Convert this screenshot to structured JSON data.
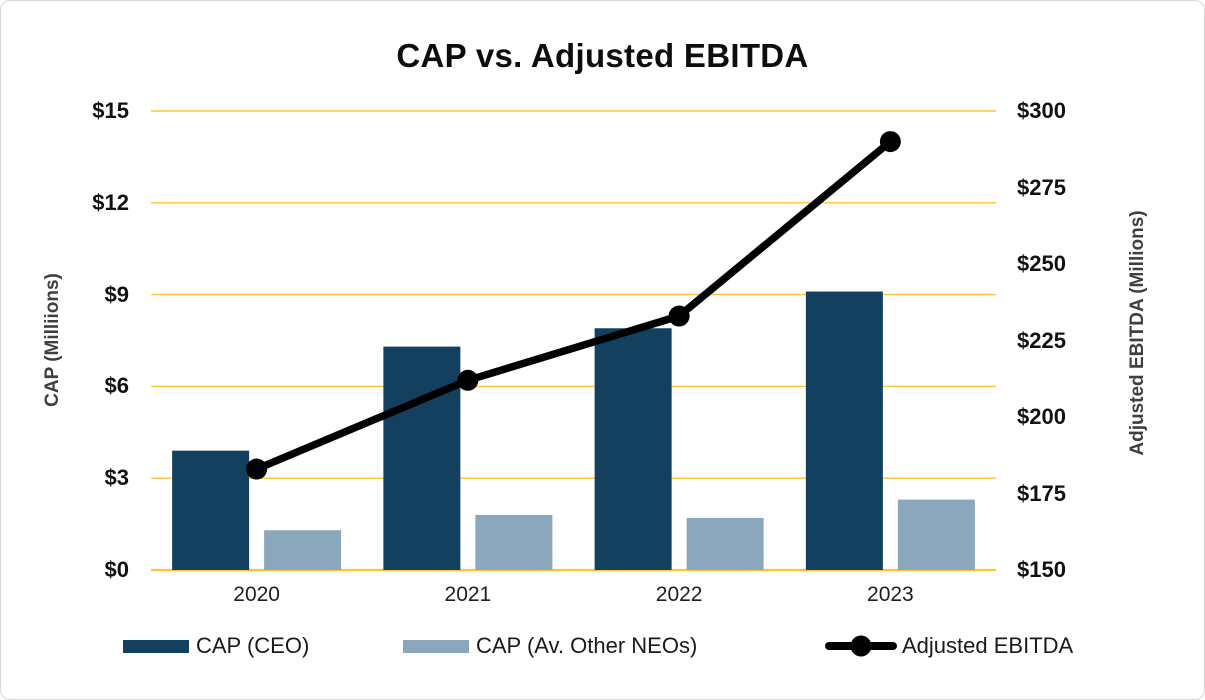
{
  "chart_data": {
    "type": "bar",
    "subtype": "combo-bar-line",
    "title": "CAP vs. Adjusted EBITDA",
    "categories": [
      "2020",
      "2021",
      "2022",
      "2023"
    ],
    "series": [
      {
        "name": "CAP (CEO)",
        "render": "bar",
        "axis": "left",
        "color": "#12405e",
        "values": [
          3.9,
          7.3,
          7.9,
          9.1
        ]
      },
      {
        "name": "CAP (Av. Other NEOs)",
        "render": "bar",
        "axis": "left",
        "color": "#8ba7bb",
        "values": [
          1.3,
          1.8,
          1.7,
          2.3
        ]
      },
      {
        "name": "Adjusted EBITDA",
        "render": "line",
        "axis": "right",
        "color": "#000000",
        "values": [
          183,
          212,
          233,
          290
        ]
      }
    ],
    "left_axis": {
      "label": "CAP (Milliions)",
      "min": 0,
      "max": 15,
      "ticks": [
        "$15",
        "$12",
        "$9",
        "$6",
        "$3",
        "$0"
      ]
    },
    "right_axis": {
      "label": "Adjusted EBITDA  (Millions)",
      "min": 150,
      "max": 300,
      "ticks": [
        "$300",
        "$275",
        "$250",
        "$225",
        "$200",
        "$175",
        "$150"
      ]
    },
    "grid": "horizontal",
    "gridline_color": "#ffc333",
    "legend_position": "bottom"
  }
}
